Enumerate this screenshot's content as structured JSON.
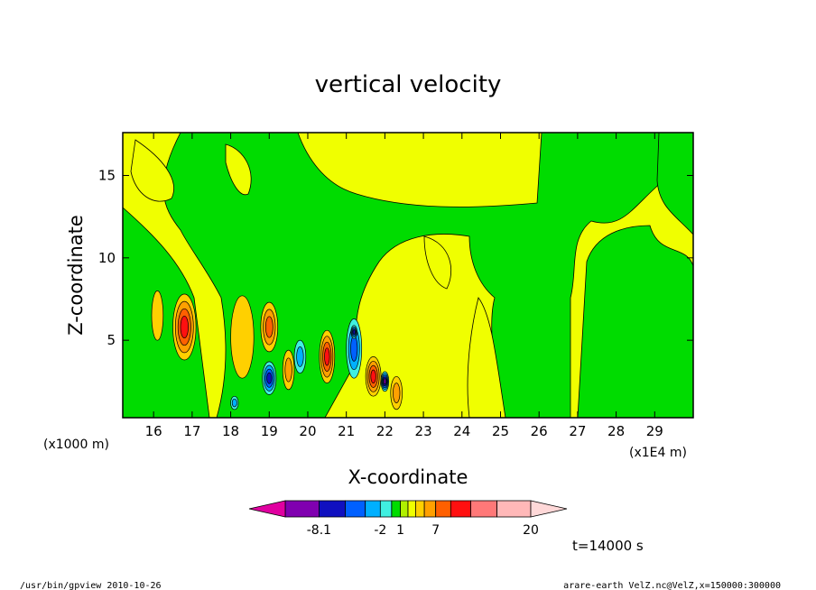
{
  "page": {
    "footer_left": "/usr/bin/gpview   2010-10-26",
    "footer_right": "arare-earth_VelZ.nc@VelZ,x=150000:300000",
    "time_label": "t=14000  s"
  },
  "chart_data": {
    "type": "heatmap",
    "title": "vertical velocity",
    "xlabel": "X-coordinate",
    "ylabel": "Z-coordinate",
    "x_unit": "(x1E4  m)",
    "y_unit": "(x1000  m)",
    "xlim": [
      15.2,
      30.0
    ],
    "ylim": [
      0.3,
      17.6
    ],
    "x_ticks": [
      16,
      17,
      18,
      19,
      20,
      21,
      22,
      23,
      24,
      25,
      26,
      27,
      28,
      29
    ],
    "y_ticks": [
      5,
      10,
      15
    ],
    "colors": {
      "background_field": "#f0ff00",
      "negative_weak": "#00dc00",
      "contour_line": "#000000"
    },
    "colorbar": {
      "colors": [
        "#e000a0",
        "#8000b0",
        "#1010c0",
        "#0060ff",
        "#00b0ff",
        "#40f0e0",
        "#00dc00",
        "#b0f000",
        "#f0ff00",
        "#ffd000",
        "#ffa000",
        "#ff6000",
        "#ff1010",
        "#ff7878",
        "#ffb8b8",
        "#ffd8d8"
      ],
      "tick_labels": [
        "-8.1",
        "-2",
        "1",
        "7",
        "20"
      ],
      "tick_index": [
        2,
        5,
        7,
        11,
        15
      ]
    },
    "features": [
      {
        "sign": "pos",
        "x": 16.8,
        "z": 5.8,
        "sx": 0.3,
        "sz": 2.0,
        "amp": 6
      },
      {
        "sign": "pos",
        "x": 16.1,
        "z": 6.5,
        "sx": 0.15,
        "sz": 1.5,
        "amp": 2
      },
      {
        "sign": "pos",
        "x": 18.3,
        "z": 5.2,
        "sx": 0.3,
        "sz": 2.5,
        "amp": 2
      },
      {
        "sign": "pos",
        "x": 19.0,
        "z": 5.8,
        "sx": 0.22,
        "sz": 1.5,
        "amp": 5
      },
      {
        "sign": "neg",
        "x": 19.0,
        "z": 2.7,
        "sx": 0.18,
        "sz": 1.0,
        "amp": 7
      },
      {
        "sign": "pos",
        "x": 19.5,
        "z": 3.2,
        "sx": 0.15,
        "sz": 1.2,
        "amp": 3
      },
      {
        "sign": "neg",
        "x": 19.8,
        "z": 4.0,
        "sx": 0.15,
        "sz": 1.0,
        "amp": 3
      },
      {
        "sign": "pos",
        "x": 20.5,
        "z": 4.0,
        "sx": 0.2,
        "sz": 1.6,
        "amp": 6
      },
      {
        "sign": "neg",
        "x": 21.2,
        "z": 4.5,
        "sx": 0.2,
        "sz": 1.8,
        "amp": 4
      },
      {
        "sign": "neg",
        "x": 21.2,
        "z": 5.5,
        "sx": 0.08,
        "sz": 0.4,
        "amp": 7
      },
      {
        "sign": "pos",
        "x": 21.7,
        "z": 2.8,
        "sx": 0.2,
        "sz": 1.2,
        "amp": 6
      },
      {
        "sign": "neg",
        "x": 22.0,
        "z": 2.5,
        "sx": 0.1,
        "sz": 0.6,
        "amp": 8
      },
      {
        "sign": "pos",
        "x": 22.3,
        "z": 1.8,
        "sx": 0.15,
        "sz": 1.0,
        "amp": 3
      },
      {
        "sign": "neg",
        "x": 18.1,
        "z": 1.2,
        "sx": 0.1,
        "sz": 0.4,
        "amp": 3
      }
    ]
  }
}
